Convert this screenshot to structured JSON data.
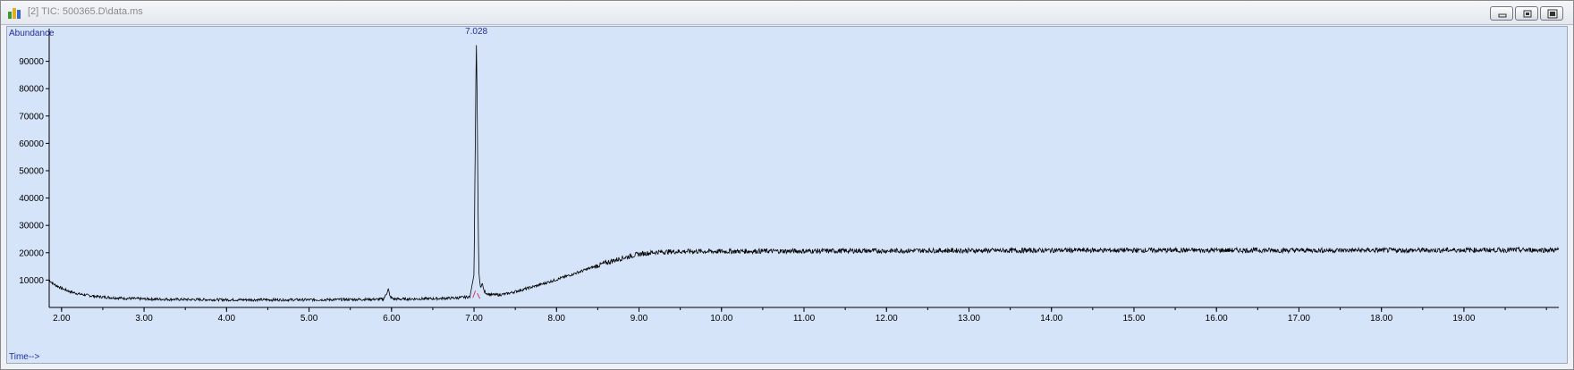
{
  "window": {
    "title": "[2] TIC: 500365.D\\data.ms",
    "icon": "chromatogram-app-icon",
    "buttons": [
      "minimize",
      "restore",
      "close"
    ]
  },
  "colors": {
    "plot_background": "#d6e4fa",
    "trace": "#000000",
    "axis_labels": "#1f2f9a",
    "peak_label": "#1f2f9a",
    "integration_marker": "#d04060"
  },
  "chart_data": {
    "type": "line",
    "title": "",
    "ylabel": "Abundance",
    "xlabel": "Time-->",
    "xlim": [
      1.85,
      20.15
    ],
    "ylim": [
      0,
      100000
    ],
    "x_ticks": [
      "2.00",
      "3.00",
      "4.00",
      "5.00",
      "6.00",
      "7.00",
      "8.00",
      "9.00",
      "10.00",
      "11.00",
      "12.00",
      "13.00",
      "14.00",
      "15.00",
      "16.00",
      "17.00",
      "18.00",
      "19.00"
    ],
    "y_ticks": [
      "10000",
      "20000",
      "30000",
      "40000",
      "50000",
      "60000",
      "70000",
      "80000",
      "90000"
    ],
    "grid": false,
    "legend": "none",
    "peak_labels": [
      {
        "x": 7.028,
        "label": "7.028"
      }
    ],
    "series": [
      {
        "x": [
          1.85,
          1.9,
          2.0,
          2.1,
          2.2,
          2.3,
          2.4,
          2.5,
          2.6,
          2.8,
          3.0,
          3.2,
          3.5,
          3.8,
          4.0,
          4.5,
          5.0,
          5.5,
          5.9,
          5.94,
          5.96,
          5.98,
          6.02,
          6.1,
          6.5,
          6.8,
          6.95,
          7.0,
          7.015,
          7.028,
          7.04,
          7.05,
          7.06,
          7.08,
          7.1,
          7.12,
          7.15,
          7.2,
          7.3,
          7.4,
          7.5,
          7.6,
          7.8,
          8.0,
          8.2,
          8.4,
          8.6,
          8.8,
          9.0,
          9.2,
          9.4,
          9.6,
          9.8,
          10.0,
          10.5,
          11.0,
          11.5,
          12.0,
          12.5,
          13.0,
          13.5,
          14.0,
          14.5,
          15.0,
          15.5,
          16.0,
          16.5,
          17.0,
          17.5,
          18.0,
          18.5,
          19.0,
          19.5,
          20.0,
          20.15
        ],
        "y": [
          10000,
          8600,
          7000,
          5800,
          5000,
          4500,
          4100,
          3800,
          3600,
          3300,
          3100,
          3000,
          2900,
          2850,
          2800,
          2800,
          2800,
          2900,
          3000,
          5000,
          7000,
          4000,
          3100,
          3050,
          3200,
          3500,
          3900,
          12000,
          60000,
          98000,
          70000,
          30000,
          12000,
          7000,
          9000,
          6000,
          5200,
          4700,
          4600,
          5000,
          5800,
          6600,
          8300,
          10200,
          12200,
          14300,
          16300,
          18100,
          19500,
          20200,
          20400,
          20500,
          20500,
          20500,
          20600,
          20600,
          20700,
          20700,
          20800,
          20800,
          20800,
          20900,
          20900,
          20900,
          20900,
          20900,
          20900,
          20900,
          20900,
          20900,
          20900,
          21000,
          21000,
          21000,
          21000
        ]
      }
    ]
  }
}
